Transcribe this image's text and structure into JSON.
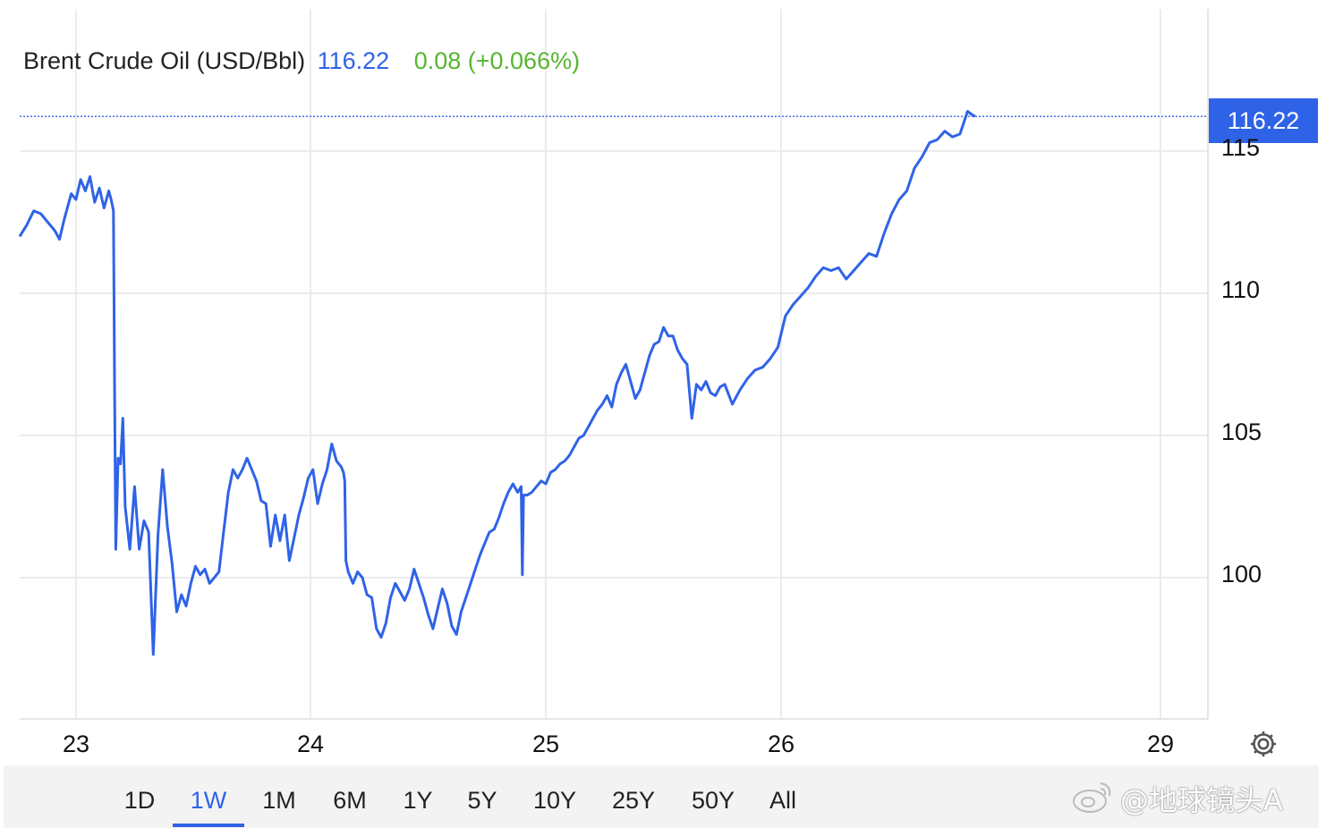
{
  "header": {
    "name": "Brent Crude Oil (USD/Bbl)",
    "price": "116.22",
    "change": "0.08 (+0.066%)"
  },
  "price_tag": "116.22",
  "colors": {
    "line": "#2f63e7",
    "change_positive": "#55b62f",
    "grid": "#e6e6e6"
  },
  "ranges": {
    "options": [
      "1D",
      "1W",
      "1M",
      "6M",
      "1Y",
      "5Y",
      "10Y",
      "25Y",
      "50Y",
      "All"
    ],
    "selected": "1W"
  },
  "watermark": "@地球镜头A",
  "icons": {
    "settings": "gear-icon",
    "watermark_logo": "weibo-logo"
  },
  "chart_data": {
    "type": "line",
    "title": "Brent Crude Oil (USD/Bbl)",
    "xlabel": "",
    "ylabel": "",
    "x_ticks": [
      "23",
      "24",
      "25",
      "26",
      "29"
    ],
    "y_ticks": [
      100,
      105,
      110,
      115
    ],
    "ylim": [
      95,
      120
    ],
    "grid": true,
    "last_value": 116.22,
    "series": [
      {
        "name": "Brent Crude Oil",
        "points": [
          [
            0.0,
            112.0
          ],
          [
            0.03,
            112.4
          ],
          [
            0.06,
            112.9
          ],
          [
            0.09,
            112.8
          ],
          [
            0.12,
            112.5
          ],
          [
            0.15,
            112.2
          ],
          [
            0.17,
            111.9
          ],
          [
            0.19,
            112.6
          ],
          [
            0.22,
            113.5
          ],
          [
            0.24,
            113.3
          ],
          [
            0.26,
            114.0
          ],
          [
            0.28,
            113.6
          ],
          [
            0.3,
            114.1
          ],
          [
            0.32,
            113.2
          ],
          [
            0.34,
            113.7
          ],
          [
            0.36,
            113.0
          ],
          [
            0.38,
            113.6
          ],
          [
            0.39,
            113.3
          ],
          [
            0.4,
            112.9
          ],
          [
            0.405,
            106.5
          ],
          [
            0.41,
            101.0
          ],
          [
            0.42,
            104.2
          ],
          [
            0.43,
            104.0
          ],
          [
            0.44,
            105.6
          ],
          [
            0.45,
            102.5
          ],
          [
            0.47,
            101.0
          ],
          [
            0.49,
            103.2
          ],
          [
            0.51,
            101.0
          ],
          [
            0.53,
            102.0
          ],
          [
            0.55,
            101.6
          ],
          [
            0.57,
            97.3
          ],
          [
            0.59,
            101.5
          ],
          [
            0.61,
            103.8
          ],
          [
            0.63,
            101.8
          ],
          [
            0.65,
            100.5
          ],
          [
            0.67,
            98.8
          ],
          [
            0.69,
            99.4
          ],
          [
            0.71,
            99.0
          ],
          [
            0.73,
            99.8
          ],
          [
            0.75,
            100.4
          ],
          [
            0.77,
            100.1
          ],
          [
            0.79,
            100.3
          ],
          [
            0.81,
            99.8
          ],
          [
            0.83,
            100.0
          ],
          [
            0.85,
            100.2
          ],
          [
            0.87,
            101.6
          ],
          [
            0.89,
            103.0
          ],
          [
            0.91,
            103.8
          ],
          [
            0.93,
            103.5
          ],
          [
            0.95,
            103.8
          ],
          [
            0.97,
            104.2
          ],
          [
            0.99,
            103.8
          ],
          [
            1.01,
            103.4
          ],
          [
            1.03,
            102.7
          ],
          [
            1.05,
            102.6
          ],
          [
            1.07,
            101.1
          ],
          [
            1.09,
            102.2
          ],
          [
            1.11,
            101.3
          ],
          [
            1.13,
            102.2
          ],
          [
            1.15,
            100.6
          ],
          [
            1.17,
            101.4
          ],
          [
            1.19,
            102.2
          ],
          [
            1.21,
            102.8
          ],
          [
            1.23,
            103.5
          ],
          [
            1.25,
            103.8
          ],
          [
            1.27,
            102.6
          ],
          [
            1.29,
            103.3
          ],
          [
            1.31,
            103.8
          ],
          [
            1.33,
            104.7
          ],
          [
            1.35,
            104.1
          ],
          [
            1.37,
            103.9
          ],
          [
            1.38,
            103.7
          ],
          [
            1.385,
            103.4
          ],
          [
            1.39,
            100.6
          ],
          [
            1.4,
            100.2
          ],
          [
            1.42,
            99.8
          ],
          [
            1.44,
            100.2
          ],
          [
            1.46,
            100.0
          ],
          [
            1.48,
            99.4
          ],
          [
            1.5,
            99.3
          ],
          [
            1.52,
            98.2
          ],
          [
            1.54,
            97.9
          ],
          [
            1.56,
            98.4
          ],
          [
            1.58,
            99.3
          ],
          [
            1.6,
            99.8
          ],
          [
            1.62,
            99.5
          ],
          [
            1.64,
            99.2
          ],
          [
            1.66,
            99.6
          ],
          [
            1.68,
            100.3
          ],
          [
            1.7,
            99.8
          ],
          [
            1.72,
            99.3
          ],
          [
            1.74,
            98.7
          ],
          [
            1.76,
            98.2
          ],
          [
            1.78,
            98.9
          ],
          [
            1.8,
            99.6
          ],
          [
            1.82,
            99.1
          ],
          [
            1.84,
            98.3
          ],
          [
            1.86,
            98.0
          ],
          [
            1.88,
            98.8
          ],
          [
            1.9,
            99.3
          ],
          [
            1.92,
            99.8
          ],
          [
            1.94,
            100.3
          ],
          [
            1.96,
            100.8
          ],
          [
            1.98,
            101.2
          ],
          [
            2.0,
            101.6
          ],
          [
            2.02,
            101.7
          ],
          [
            2.04,
            102.1
          ],
          [
            2.06,
            102.6
          ],
          [
            2.08,
            103.0
          ],
          [
            2.1,
            103.3
          ],
          [
            2.12,
            103.0
          ],
          [
            2.135,
            103.2
          ],
          [
            2.14,
            100.1
          ],
          [
            2.145,
            102.9
          ],
          [
            2.16,
            102.9
          ],
          [
            2.18,
            103.0
          ],
          [
            2.2,
            103.2
          ],
          [
            2.22,
            103.4
          ],
          [
            2.24,
            103.3
          ],
          [
            2.26,
            103.7
          ],
          [
            2.28,
            103.8
          ],
          [
            2.3,
            104.0
          ],
          [
            2.32,
            104.1
          ],
          [
            2.34,
            104.3
          ],
          [
            2.36,
            104.6
          ],
          [
            2.38,
            104.9
          ],
          [
            2.4,
            105.0
          ],
          [
            2.42,
            105.3
          ],
          [
            2.44,
            105.6
          ],
          [
            2.46,
            105.9
          ],
          [
            2.48,
            106.1
          ],
          [
            2.5,
            106.4
          ],
          [
            2.52,
            106.0
          ],
          [
            2.54,
            106.8
          ],
          [
            2.56,
            107.2
          ],
          [
            2.58,
            107.5
          ],
          [
            2.6,
            106.9
          ],
          [
            2.62,
            106.3
          ],
          [
            2.64,
            106.6
          ],
          [
            2.66,
            107.2
          ],
          [
            2.68,
            107.8
          ],
          [
            2.7,
            108.2
          ],
          [
            2.72,
            108.3
          ],
          [
            2.74,
            108.8
          ],
          [
            2.76,
            108.5
          ],
          [
            2.78,
            108.5
          ],
          [
            2.8,
            108.0
          ],
          [
            2.82,
            107.7
          ],
          [
            2.84,
            107.5
          ],
          [
            2.86,
            105.6
          ],
          [
            2.88,
            106.8
          ],
          [
            2.9,
            106.6
          ],
          [
            2.92,
            106.9
          ],
          [
            2.94,
            106.5
          ],
          [
            2.96,
            106.4
          ],
          [
            2.98,
            106.7
          ],
          [
            3.0,
            106.8
          ],
          [
            3.02,
            106.1
          ],
          [
            3.04,
            106.6
          ],
          [
            3.06,
            107.0
          ],
          [
            3.08,
            107.3
          ],
          [
            3.1,
            107.4
          ],
          [
            3.12,
            107.7
          ],
          [
            3.14,
            108.1
          ],
          [
            3.16,
            109.2
          ],
          [
            3.18,
            109.6
          ],
          [
            3.2,
            109.9
          ],
          [
            3.22,
            110.2
          ],
          [
            3.24,
            110.6
          ],
          [
            3.26,
            110.9
          ],
          [
            3.28,
            110.8
          ],
          [
            3.3,
            110.9
          ],
          [
            3.32,
            110.5
          ],
          [
            3.34,
            110.8
          ],
          [
            3.36,
            111.1
          ],
          [
            3.38,
            111.4
          ],
          [
            3.4,
            111.3
          ],
          [
            3.42,
            112.1
          ],
          [
            3.44,
            112.8
          ],
          [
            3.46,
            113.3
          ],
          [
            3.48,
            113.6
          ],
          [
            3.5,
            114.4
          ],
          [
            3.52,
            114.8
          ],
          [
            3.54,
            115.3
          ],
          [
            3.56,
            115.4
          ],
          [
            3.58,
            115.7
          ],
          [
            3.6,
            115.5
          ],
          [
            3.62,
            115.6
          ],
          [
            3.64,
            116.4
          ],
          [
            3.65,
            116.3
          ],
          [
            3.66,
            116.22
          ]
        ]
      }
    ]
  }
}
